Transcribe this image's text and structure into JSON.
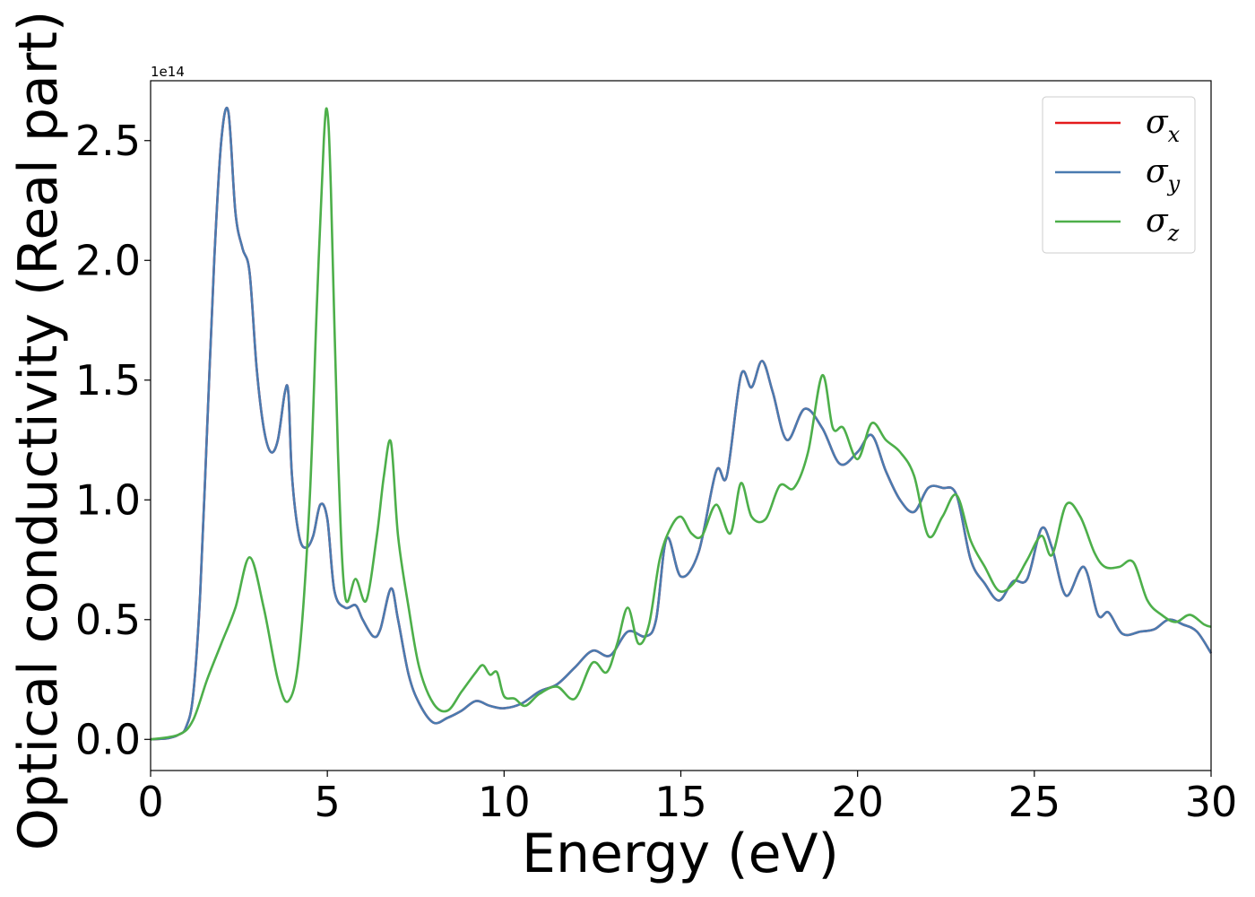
{
  "chart_data": {
    "type": "line",
    "title": "",
    "xlabel": "Energy (eV)",
    "ylabel": "Optical conductivity (Real part)",
    "y_offset_label": "1e14",
    "xlim": [
      0,
      30
    ],
    "ylim": [
      -0.13,
      2.75
    ],
    "x_ticks": [
      0,
      5,
      10,
      15,
      20,
      25,
      30
    ],
    "x_tick_labels": [
      "0",
      "5",
      "10",
      "15",
      "20",
      "25",
      "30"
    ],
    "y_ticks": [
      0.0,
      0.5,
      1.0,
      1.5,
      2.0,
      2.5
    ],
    "y_tick_labels": [
      "0.0",
      "0.5",
      "1.0",
      "1.5",
      "2.0",
      "2.5"
    ],
    "grid": false,
    "legend_position": "top-right",
    "series": [
      {
        "name": "σx",
        "symbol": "σ",
        "sub": "x",
        "color": "#e41a1c",
        "x": [
          0,
          0.5,
          0.8,
          1.0,
          1.2,
          1.4,
          1.6,
          1.8,
          2.0,
          2.2,
          2.4,
          2.6,
          2.8,
          3.0,
          3.2,
          3.4,
          3.6,
          3.8,
          3.9,
          4.0,
          4.2,
          4.4,
          4.6,
          4.8,
          5.0,
          5.2,
          5.5,
          5.8,
          6.0,
          6.3,
          6.5,
          6.8,
          7.0,
          7.3,
          7.6,
          8.0,
          8.4,
          8.8,
          9.2,
          9.6,
          10.0,
          10.5,
          11.0,
          11.5,
          12.0,
          12.5,
          13.0,
          13.5,
          14.0,
          14.3,
          14.6,
          15.0,
          15.5,
          16.0,
          16.3,
          16.7,
          17.0,
          17.3,
          17.6,
          18.0,
          18.5,
          19.0,
          19.5,
          20.0,
          20.4,
          20.8,
          21.2,
          21.6,
          22.0,
          22.4,
          22.8,
          23.2,
          23.6,
          24.0,
          24.4,
          24.8,
          25.2,
          25.5,
          25.9,
          26.4,
          26.8,
          27.1,
          27.5,
          28.0,
          28.4,
          28.8,
          29.2,
          29.6,
          30.0
        ],
        "y": [
          0,
          0.005,
          0.02,
          0.05,
          0.18,
          0.6,
          1.3,
          2.0,
          2.5,
          2.62,
          2.2,
          2.05,
          1.95,
          1.55,
          1.3,
          1.2,
          1.25,
          1.45,
          1.44,
          1.1,
          0.85,
          0.8,
          0.85,
          0.98,
          0.92,
          0.62,
          0.55,
          0.56,
          0.5,
          0.43,
          0.46,
          0.63,
          0.5,
          0.27,
          0.15,
          0.07,
          0.09,
          0.12,
          0.16,
          0.14,
          0.13,
          0.15,
          0.2,
          0.23,
          0.3,
          0.37,
          0.35,
          0.45,
          0.43,
          0.5,
          0.84,
          0.68,
          0.78,
          1.12,
          1.1,
          1.52,
          1.47,
          1.58,
          1.45,
          1.25,
          1.38,
          1.3,
          1.15,
          1.2,
          1.27,
          1.12,
          1.0,
          0.95,
          1.05,
          1.05,
          1.02,
          0.75,
          0.65,
          0.58,
          0.66,
          0.67,
          0.88,
          0.8,
          0.6,
          0.72,
          0.52,
          0.53,
          0.44,
          0.45,
          0.46,
          0.5,
          0.48,
          0.45,
          0.36
        ]
      },
      {
        "name": "σy",
        "symbol": "σ",
        "sub": "y",
        "color": "#4a7bb0",
        "x": [
          0,
          0.5,
          0.8,
          1.0,
          1.2,
          1.4,
          1.6,
          1.8,
          2.0,
          2.2,
          2.4,
          2.6,
          2.8,
          3.0,
          3.2,
          3.4,
          3.6,
          3.8,
          3.9,
          4.0,
          4.2,
          4.4,
          4.6,
          4.8,
          5.0,
          5.2,
          5.5,
          5.8,
          6.0,
          6.3,
          6.5,
          6.8,
          7.0,
          7.3,
          7.6,
          8.0,
          8.4,
          8.8,
          9.2,
          9.6,
          10.0,
          10.5,
          11.0,
          11.5,
          12.0,
          12.5,
          13.0,
          13.5,
          14.0,
          14.3,
          14.6,
          15.0,
          15.5,
          16.0,
          16.3,
          16.7,
          17.0,
          17.3,
          17.6,
          18.0,
          18.5,
          19.0,
          19.5,
          20.0,
          20.4,
          20.8,
          21.2,
          21.6,
          22.0,
          22.4,
          22.8,
          23.2,
          23.6,
          24.0,
          24.4,
          24.8,
          25.2,
          25.5,
          25.9,
          26.4,
          26.8,
          27.1,
          27.5,
          28.0,
          28.4,
          28.8,
          29.2,
          29.6,
          30.0
        ],
        "y": [
          0,
          0.005,
          0.02,
          0.05,
          0.18,
          0.6,
          1.3,
          2.0,
          2.5,
          2.62,
          2.2,
          2.05,
          1.95,
          1.55,
          1.3,
          1.2,
          1.25,
          1.45,
          1.44,
          1.1,
          0.85,
          0.8,
          0.85,
          0.98,
          0.92,
          0.62,
          0.55,
          0.56,
          0.5,
          0.43,
          0.46,
          0.63,
          0.5,
          0.27,
          0.15,
          0.07,
          0.09,
          0.12,
          0.16,
          0.14,
          0.13,
          0.15,
          0.2,
          0.23,
          0.3,
          0.37,
          0.35,
          0.45,
          0.43,
          0.5,
          0.84,
          0.68,
          0.78,
          1.12,
          1.1,
          1.52,
          1.47,
          1.58,
          1.45,
          1.25,
          1.38,
          1.3,
          1.15,
          1.2,
          1.27,
          1.12,
          1.0,
          0.95,
          1.05,
          1.05,
          1.02,
          0.75,
          0.65,
          0.58,
          0.66,
          0.67,
          0.88,
          0.8,
          0.6,
          0.72,
          0.52,
          0.53,
          0.44,
          0.45,
          0.46,
          0.5,
          0.48,
          0.45,
          0.36
        ]
      },
      {
        "name": "σz",
        "symbol": "σ",
        "sub": "z",
        "color": "#4daf4a",
        "x": [
          0,
          0.8,
          1.2,
          1.6,
          2.0,
          2.4,
          2.8,
          3.2,
          3.6,
          3.9,
          4.2,
          4.5,
          4.7,
          4.9,
          5.0,
          5.1,
          5.3,
          5.5,
          5.8,
          6.1,
          6.4,
          6.6,
          6.8,
          7.0,
          7.3,
          7.6,
          8.0,
          8.4,
          8.8,
          9.2,
          9.4,
          9.6,
          9.8,
          10.0,
          10.3,
          10.6,
          11.0,
          11.5,
          12.0,
          12.5,
          12.9,
          13.2,
          13.5,
          13.8,
          14.1,
          14.4,
          14.7,
          15.0,
          15.3,
          15.6,
          16.0,
          16.4,
          16.7,
          17.0,
          17.4,
          17.8,
          18.2,
          18.6,
          19.0,
          19.3,
          19.6,
          20.0,
          20.4,
          20.8,
          21.2,
          21.6,
          22.0,
          22.4,
          22.8,
          23.2,
          23.6,
          24.0,
          24.4,
          24.8,
          25.2,
          25.5,
          25.9,
          26.3,
          26.7,
          27.0,
          27.4,
          27.8,
          28.2,
          28.6,
          29.0,
          29.4,
          29.8,
          30.0
        ],
        "y": [
          0,
          0.02,
          0.08,
          0.25,
          0.4,
          0.55,
          0.76,
          0.55,
          0.25,
          0.16,
          0.35,
          1.0,
          1.8,
          2.5,
          2.62,
          2.3,
          1.2,
          0.6,
          0.67,
          0.58,
          0.85,
          1.1,
          1.24,
          0.85,
          0.55,
          0.3,
          0.15,
          0.12,
          0.2,
          0.28,
          0.31,
          0.27,
          0.28,
          0.18,
          0.17,
          0.14,
          0.19,
          0.22,
          0.17,
          0.32,
          0.28,
          0.4,
          0.55,
          0.4,
          0.48,
          0.75,
          0.88,
          0.93,
          0.86,
          0.85,
          0.98,
          0.86,
          1.07,
          0.93,
          0.92,
          1.06,
          1.05,
          1.2,
          1.52,
          1.3,
          1.3,
          1.17,
          1.32,
          1.25,
          1.2,
          1.1,
          0.85,
          0.93,
          1.02,
          0.83,
          0.72,
          0.62,
          0.65,
          0.75,
          0.85,
          0.77,
          0.98,
          0.93,
          0.78,
          0.72,
          0.72,
          0.74,
          0.58,
          0.52,
          0.49,
          0.52,
          0.48,
          0.47
        ]
      }
    ]
  }
}
